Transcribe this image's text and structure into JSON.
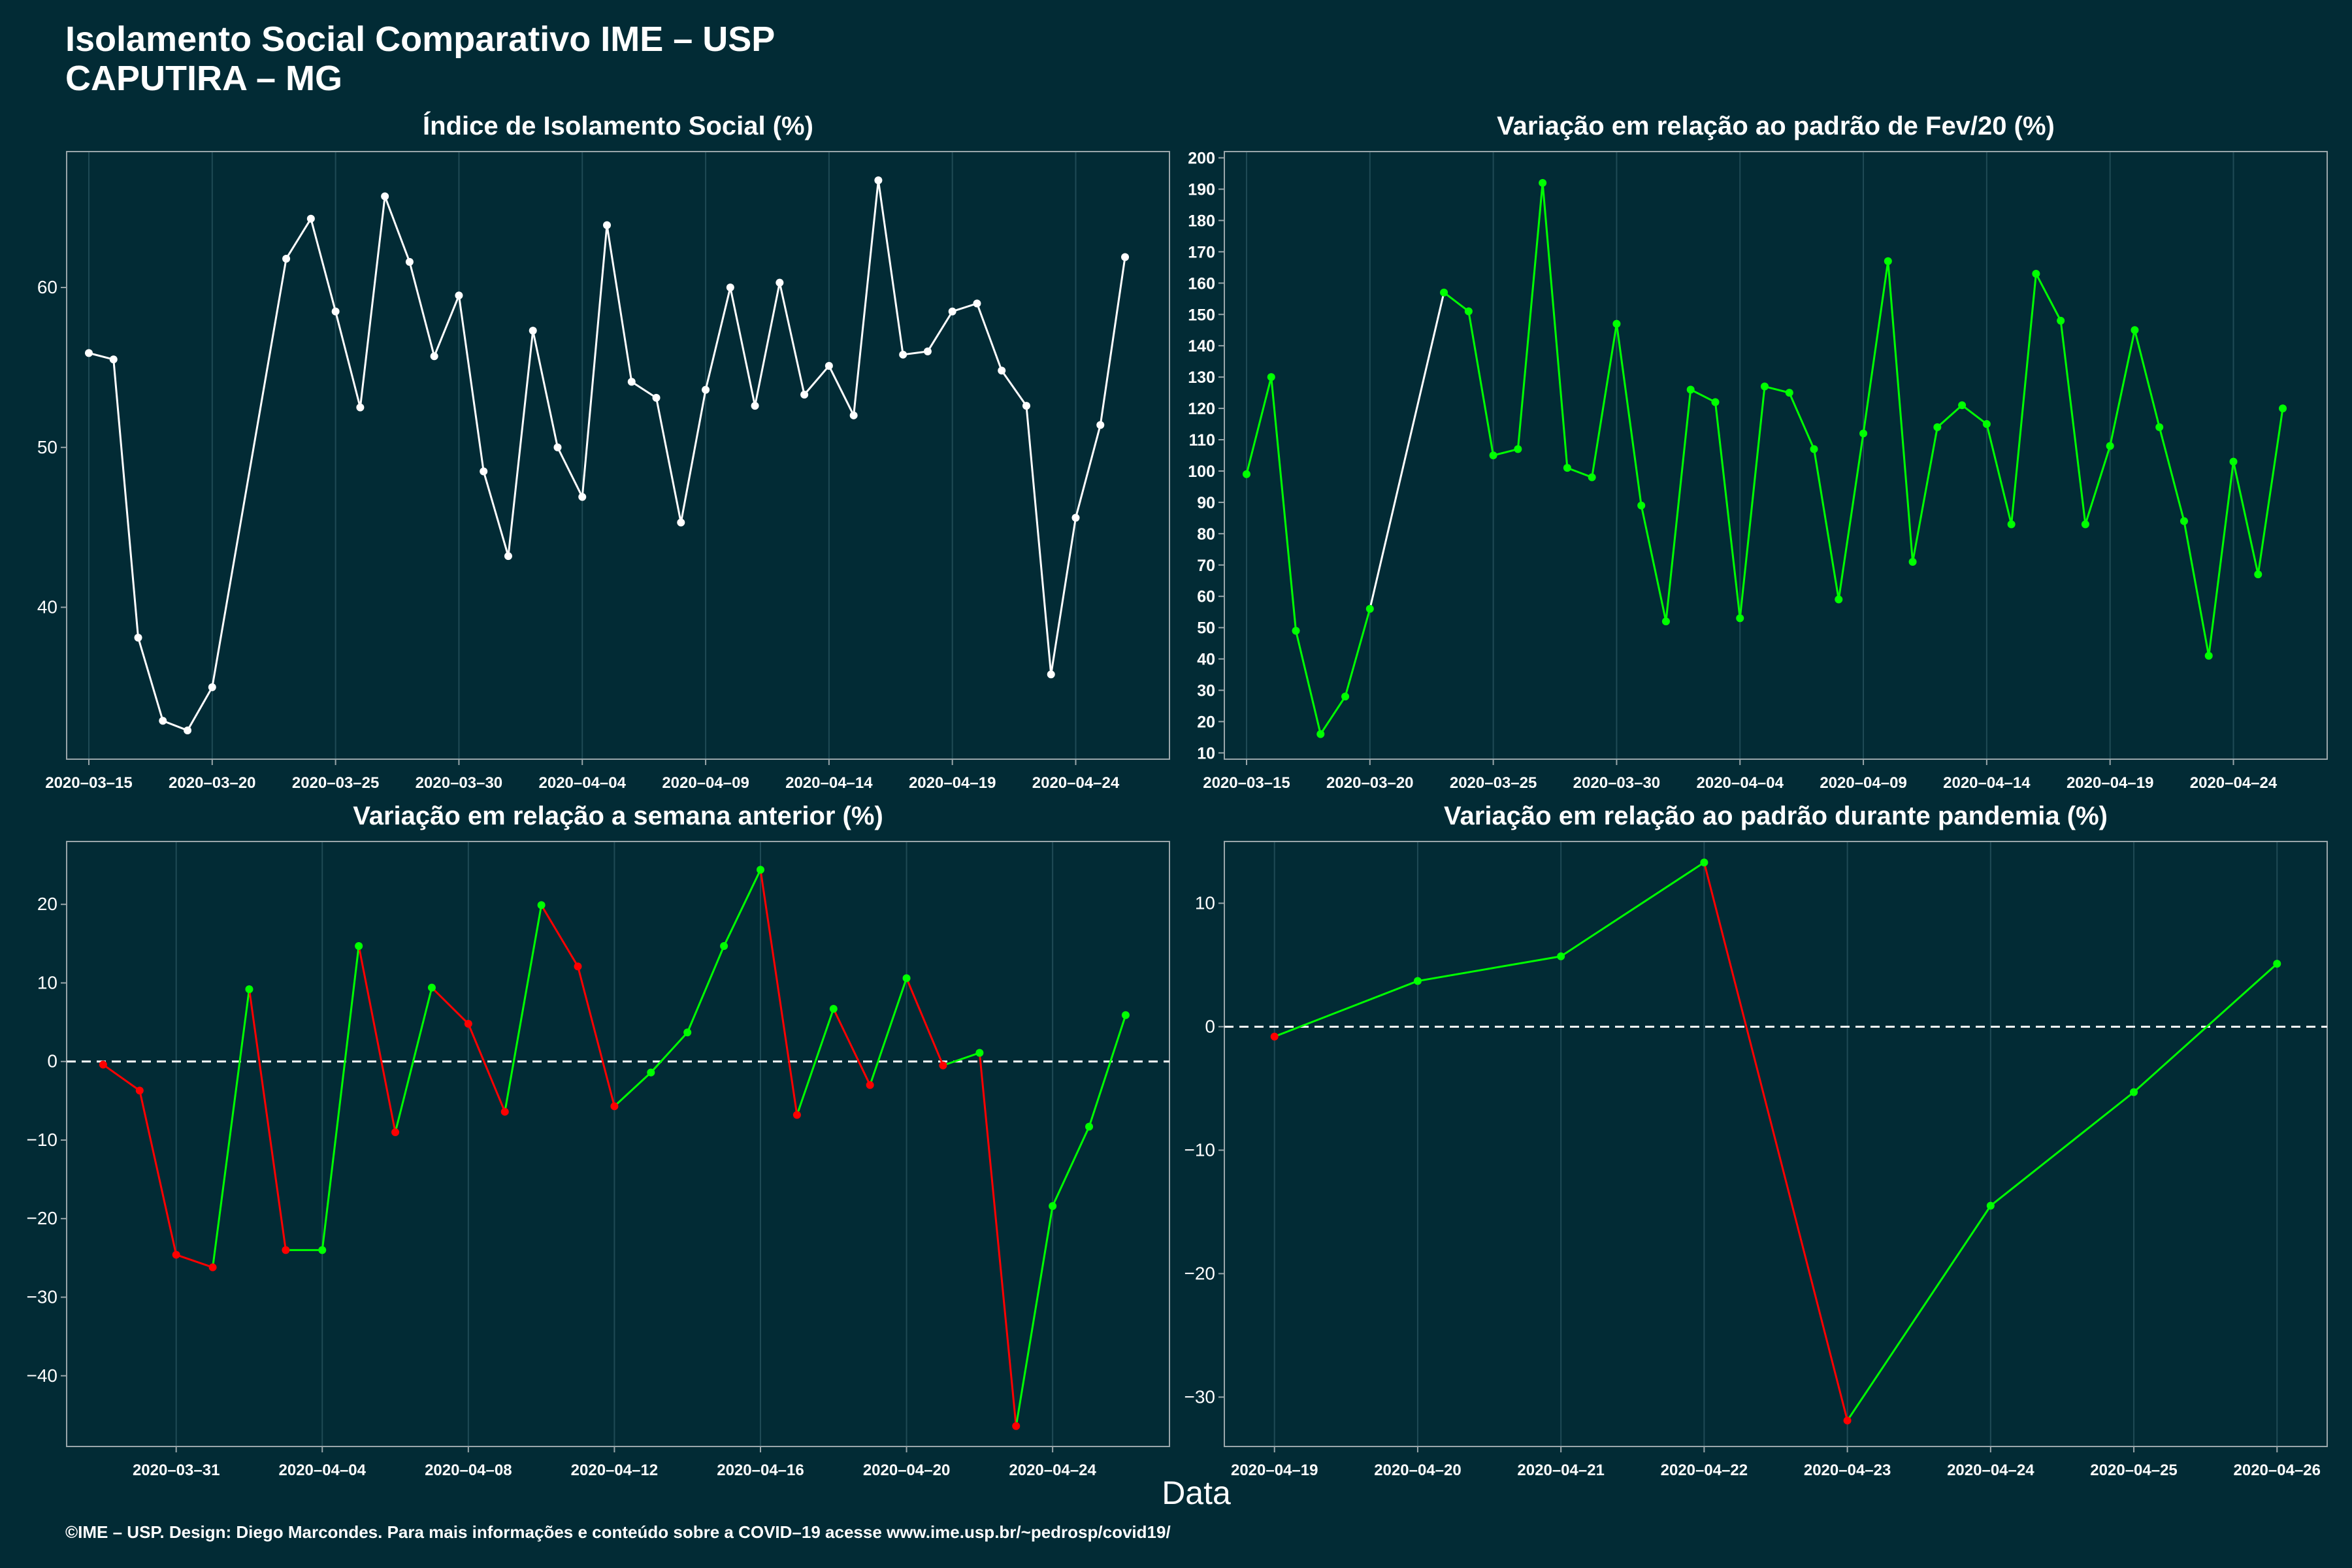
{
  "header": {
    "title": "Isolamento Social Comparativo IME – USP",
    "subtitle": "CAPUTIRA – MG"
  },
  "xlabel": "Data",
  "footer": "©IME – USP. Design: Diego Marcondes. Para mais informações e conteúdo sobre a COVID–19 acesse www.ime.usp.br/~pedrosp/covid19/",
  "colors": {
    "background": "#022b35",
    "white": "#ffffff",
    "green": "#00ff00",
    "red": "#ff0000",
    "grid": "#1f4a55"
  },
  "chart_data": [
    {
      "type": "line",
      "title": "Índice de Isolamento Social (%)",
      "x": [
        "2020-03-15",
        "2020-03-16",
        "2020-03-17",
        "2020-03-18",
        "2020-03-19",
        "2020-03-20",
        "2020-03-23",
        "2020-03-24",
        "2020-03-25",
        "2020-03-26",
        "2020-03-27",
        "2020-03-28",
        "2020-03-29",
        "2020-03-30",
        "2020-03-31",
        "2020-04-01",
        "2020-04-02",
        "2020-04-03",
        "2020-04-04",
        "2020-04-05",
        "2020-04-06",
        "2020-04-07",
        "2020-04-08",
        "2020-04-09",
        "2020-04-10",
        "2020-04-11",
        "2020-04-12",
        "2020-04-13",
        "2020-04-14",
        "2020-04-15",
        "2020-04-16",
        "2020-04-17",
        "2020-04-18",
        "2020-04-19",
        "2020-04-20",
        "2020-04-21",
        "2020-04-22",
        "2020-04-23",
        "2020-04-24",
        "2020-04-25",
        "2020-04-26"
      ],
      "values": [
        55.9,
        55.5,
        38.1,
        32.9,
        32.3,
        35.0,
        61.8,
        64.3,
        58.5,
        52.5,
        65.7,
        61.6,
        55.7,
        59.5,
        48.5,
        43.2,
        57.3,
        50.0,
        46.9,
        63.9,
        54.1,
        53.1,
        45.3,
        53.6,
        60.0,
        52.6,
        60.3,
        53.3,
        55.1,
        52.0,
        66.7,
        55.8,
        56.0,
        58.5,
        59.0,
        54.8,
        52.6,
        35.8,
        45.6,
        51.4,
        61.9
      ],
      "xticks": [
        "2020-03-15",
        "2020-03-20",
        "2020-03-25",
        "2020-03-30",
        "2020-04-04",
        "2020-04-09",
        "2020-04-14",
        "2020-04-19",
        "2020-04-24"
      ],
      "yticks": [
        40,
        50,
        60
      ],
      "ylim": [
        30.5,
        68.5
      ],
      "color": "#ffffff"
    },
    {
      "type": "line",
      "title": "Variação em relação ao padrão de Fev/20 (%)",
      "x": [
        "2020-03-15",
        "2020-03-16",
        "2020-03-17",
        "2020-03-18",
        "2020-03-19",
        "2020-03-20",
        "2020-03-23",
        "2020-03-24",
        "2020-03-25",
        "2020-03-26",
        "2020-03-27",
        "2020-03-28",
        "2020-03-29",
        "2020-03-30",
        "2020-03-31",
        "2020-04-01",
        "2020-04-02",
        "2020-04-03",
        "2020-04-04",
        "2020-04-05",
        "2020-04-06",
        "2020-04-07",
        "2020-04-08",
        "2020-04-09",
        "2020-04-10",
        "2020-04-11",
        "2020-04-12",
        "2020-04-13",
        "2020-04-14",
        "2020-04-15",
        "2020-04-16",
        "2020-04-17",
        "2020-04-18",
        "2020-04-19",
        "2020-04-20",
        "2020-04-21",
        "2020-04-22",
        "2020-04-23",
        "2020-04-24",
        "2020-04-25",
        "2020-04-26"
      ],
      "values": [
        99,
        130,
        49,
        16,
        28,
        56,
        157,
        151,
        105,
        107,
        192,
        101,
        98,
        147,
        89,
        52,
        126,
        122,
        53,
        127,
        125,
        107,
        59,
        112,
        167,
        71,
        114,
        121,
        115,
        83,
        163,
        148,
        83,
        108,
        145,
        114,
        84,
        41,
        103,
        67,
        120
      ],
      "xticks": [
        "2020-03-15",
        "2020-03-20",
        "2020-03-25",
        "2020-03-30",
        "2020-04-04",
        "2020-04-09",
        "2020-04-14",
        "2020-04-19",
        "2020-04-24"
      ],
      "yticks": [
        10,
        20,
        30,
        40,
        50,
        60,
        70,
        80,
        90,
        100,
        110,
        120,
        130,
        140,
        150,
        160,
        170,
        180,
        190,
        200
      ],
      "ylim": [
        8,
        202
      ],
      "colors": {
        "default": "#00ff00",
        "gap": "#ffffff"
      }
    },
    {
      "type": "line",
      "title": "Variação em relação a semana anterior (%)",
      "x": [
        "2020-03-29",
        "2020-03-30",
        "2020-03-31",
        "2020-04-01",
        "2020-04-02",
        "2020-04-03",
        "2020-04-04",
        "2020-04-05",
        "2020-04-06",
        "2020-04-07",
        "2020-04-08",
        "2020-04-09",
        "2020-04-10",
        "2020-04-11",
        "2020-04-12",
        "2020-04-13",
        "2020-04-14",
        "2020-04-15",
        "2020-04-16",
        "2020-04-17",
        "2020-04-18",
        "2020-04-19",
        "2020-04-20",
        "2020-04-21",
        "2020-04-22",
        "2020-04-23",
        "2020-04-24",
        "2020-04-25",
        "2020-04-26"
      ],
      "values": [
        -0.4,
        -3.7,
        -24.6,
        -26.2,
        9.2,
        -24.0,
        -24.0,
        14.7,
        -9.0,
        9.4,
        4.8,
        -6.4,
        19.9,
        12.1,
        -5.7,
        -1.4,
        3.7,
        14.7,
        24.4,
        -6.8,
        6.7,
        -3.0,
        10.6,
        -0.5,
        1.1,
        -46.4,
        -18.4,
        -8.3,
        5.9
      ],
      "xticks": [
        "2020-03-31",
        "2020-04-04",
        "2020-04-08",
        "2020-04-12",
        "2020-04-16",
        "2020-04-20",
        "2020-04-24"
      ],
      "yticks": [
        -40,
        -30,
        -20,
        -10,
        0,
        10,
        20
      ],
      "ylim": [
        -49,
        28
      ],
      "reference_line": 0,
      "colors": {
        "up": "#00ff00",
        "down": "#ff0000"
      }
    },
    {
      "type": "line",
      "title": "Variação em relação ao padrão durante pandemia (%)",
      "x": [
        "2020-04-19",
        "2020-04-20",
        "2020-04-21",
        "2020-04-22",
        "2020-04-23",
        "2020-04-24",
        "2020-04-25",
        "2020-04-26"
      ],
      "values": [
        -0.8,
        3.7,
        5.7,
        13.3,
        -31.9,
        -14.5,
        -5.3,
        5.1
      ],
      "xticks": [
        "2020-04-19",
        "2020-04-20",
        "2020-04-21",
        "2020-04-22",
        "2020-04-23",
        "2020-04-24",
        "2020-04-25",
        "2020-04-26"
      ],
      "yticks": [
        -30,
        -20,
        -10,
        0,
        10
      ],
      "ylim": [
        -34,
        15
      ],
      "reference_line": 0,
      "colors": {
        "up": "#00ff00",
        "down": "#ff0000"
      }
    }
  ]
}
